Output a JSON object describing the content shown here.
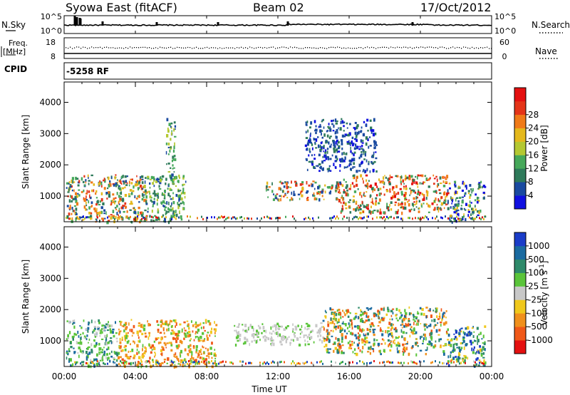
{
  "header": {
    "title": "Syowa East (fitACF)",
    "beam": "Beam 02",
    "date": "17/Oct/2012"
  },
  "panels": {
    "nsky_label": "N.Sky",
    "nsearch_label": "N.Search",
    "freq_label": "Freq.",
    "freq_unit": "[MHz]",
    "nave_label": "Nave",
    "cpid_label": "CPID",
    "cpid_value": "-5258 RF",
    "noise_ticks": [
      "10^5",
      "10^0"
    ],
    "freq_ticks": [
      "18",
      "8"
    ],
    "nave_ticks": [
      "60",
      "0"
    ]
  },
  "chart_data": [
    {
      "type": "heatmap",
      "title": "",
      "xlabel": "",
      "ylabel": "Slant Range [km]",
      "colorbar_label": "Power [dB]",
      "colorbar_ticks": [
        "4",
        "8",
        "12",
        "16",
        "20",
        "24",
        "28"
      ],
      "colorbar_colors": [
        "#1010e0",
        "#1a4aa0",
        "#2e7a5a",
        "#46a85a",
        "#b4c832",
        "#e4b81c",
        "#f07a18",
        "#e43418",
        "#e41010"
      ],
      "ylim": [
        180,
        4650
      ],
      "yticks": [
        1000,
        2000,
        3000,
        4000
      ],
      "xlim": [
        0,
        24
      ],
      "grid": false,
      "echo_regions": [
        {
          "t0": 0.1,
          "t1": 4.6,
          "r0": 200,
          "r1": 1700,
          "dominant": "green-orange"
        },
        {
          "t0": 4.3,
          "t1": 6.8,
          "r0": 200,
          "r1": 1700,
          "dominant": "green"
        },
        {
          "t0": 5.7,
          "t1": 6.2,
          "r0": 1500,
          "r1": 3500,
          "dominant": "green"
        },
        {
          "t0": 11.3,
          "t1": 15.5,
          "r0": 900,
          "r1": 1500,
          "dominant": "green-orange"
        },
        {
          "t0": 13.5,
          "t1": 17.5,
          "r0": 1800,
          "r1": 3500,
          "dominant": "blue"
        },
        {
          "t0": 15.5,
          "t1": 21.5,
          "r0": 500,
          "r1": 1700,
          "dominant": "orange-red"
        },
        {
          "t0": 21.5,
          "t1": 23.6,
          "r0": 200,
          "r1": 1500,
          "dominant": "green-blue"
        }
      ]
    },
    {
      "type": "heatmap",
      "title": "",
      "xlabel": "Time UT",
      "ylabel": "Slant Range [km]",
      "colorbar_label": "Velocity [m s^-1]",
      "colorbar_ticks": [
        "1000",
        "500",
        "100",
        "25",
        "-25",
        "-100",
        "-500",
        "-1000"
      ],
      "colorbar_colors": [
        "#1a3cc8",
        "#1a6aa0",
        "#2e8a6a",
        "#5ac43a",
        "#c8c8c8",
        "#f0c81c",
        "#f0901c",
        "#f05818",
        "#e41010"
      ],
      "ylim": [
        180,
        4650
      ],
      "yticks": [
        1000,
        2000,
        3000,
        4000
      ],
      "xlim": [
        0,
        24
      ],
      "xticks": [
        "00:00",
        "04:00",
        "08:00",
        "12:00",
        "16:00",
        "20:00",
        "00:00"
      ],
      "grid": false,
      "echo_regions": [
        {
          "t0": 0.1,
          "t1": 3.0,
          "r0": 200,
          "r1": 1700,
          "dominant": "green"
        },
        {
          "t0": 3.0,
          "t1": 8.5,
          "r0": 200,
          "r1": 1700,
          "dominant": "orange"
        },
        {
          "t0": 9.5,
          "t1": 14.5,
          "r0": 900,
          "r1": 1600,
          "dominant": "grey"
        },
        {
          "t0": 14.5,
          "t1": 21.5,
          "r0": 600,
          "r1": 2100,
          "dominant": "green-orange"
        },
        {
          "t0": 21.5,
          "t1": 23.6,
          "r0": 200,
          "r1": 1500,
          "dominant": "green-blue"
        }
      ]
    }
  ]
}
